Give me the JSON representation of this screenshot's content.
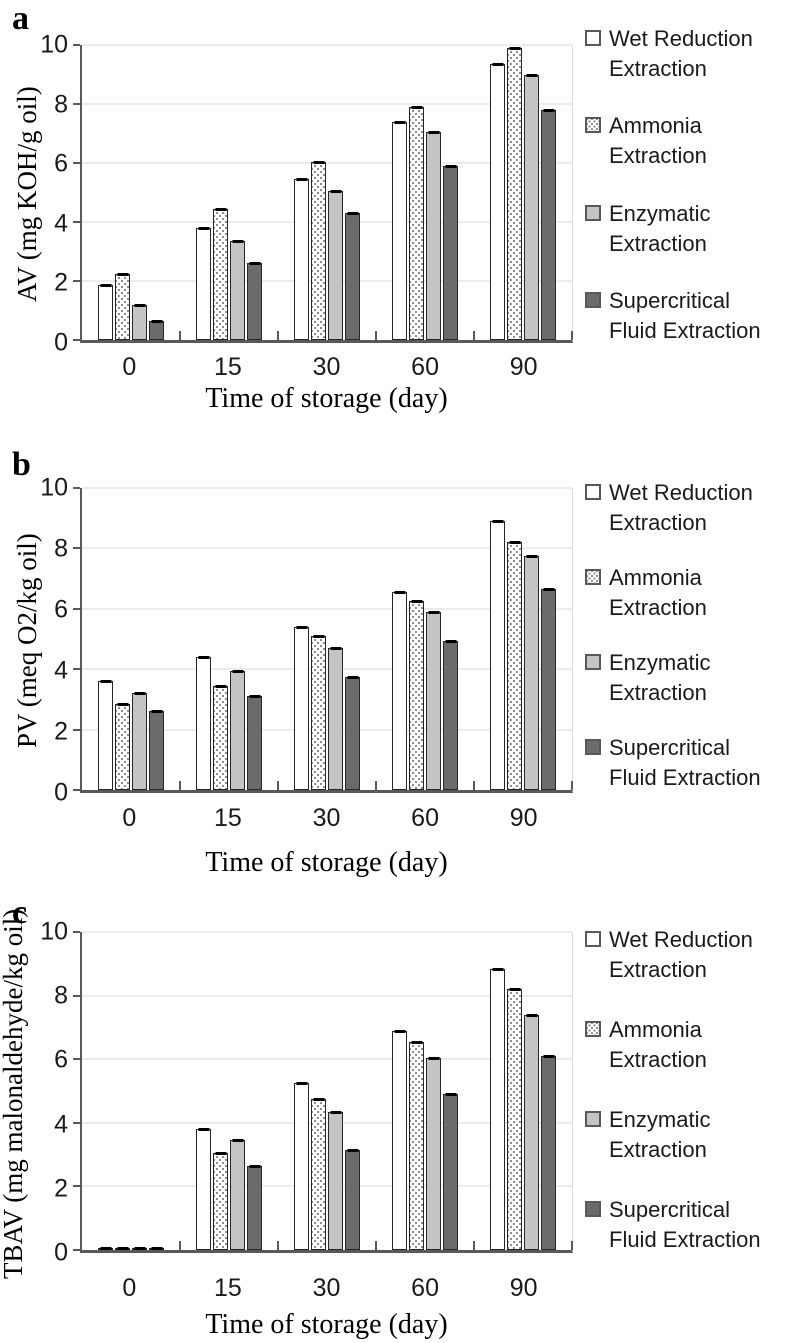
{
  "colors": {
    "background": "#ffffff",
    "axis": "#595959",
    "gridline": "#d9d9d9",
    "bar_border": "#262626",
    "wet_fill": "#ffffff",
    "ammonia_dot": "#8f8f8f",
    "enzymatic_fill": "#c4c4c4",
    "supercritical_fill": "#6b6b6b",
    "error_cap": "#000000",
    "text": "#000000"
  },
  "legend": {
    "position": "right",
    "items": [
      {
        "key": "wet",
        "line1": "Wet Reduction",
        "line2": "Extraction"
      },
      {
        "key": "ammonia",
        "line1": "Ammonia",
        "line2": "Extraction"
      },
      {
        "key": "enzymatic",
        "line1": "Enzymatic",
        "line2": "Extraction"
      },
      {
        "key": "supercritical",
        "line1": "Supercritical",
        "line2": "Fluid Extraction"
      }
    ]
  },
  "chart_data": [
    {
      "type": "bar",
      "panel_label": "a",
      "ylabel": "AV (mg KOH/g oil)",
      "xlabel": "Time of storage (day)",
      "ylim": [
        0,
        10
      ],
      "yticks": [
        0,
        2,
        4,
        6,
        8,
        10
      ],
      "grid": true,
      "has_error_caps": true,
      "legend_position": "right",
      "categories": [
        "0",
        "15",
        "30",
        "60",
        "90"
      ],
      "series": [
        {
          "key": "wet",
          "name": "Wet Reduction Extraction",
          "values": [
            1.85,
            3.8,
            5.45,
            7.4,
            9.35
          ]
        },
        {
          "key": "ammonia",
          "name": "Ammonia Extraction",
          "values": [
            2.25,
            4.45,
            6.05,
            7.9,
            9.9
          ]
        },
        {
          "key": "enzymatic",
          "name": "Enzymatic Extraction",
          "values": [
            1.2,
            3.35,
            5.05,
            7.05,
            9.0
          ]
        },
        {
          "key": "supercritical",
          "name": "Supercritical Fluid Extraction",
          "values": [
            0.65,
            2.6,
            4.3,
            5.9,
            7.8
          ]
        }
      ]
    },
    {
      "type": "bar",
      "panel_label": "b",
      "ylabel": "PV (meq O2/kg oil)",
      "xlabel": "Time of storage (day)",
      "ylim": [
        0,
        10
      ],
      "yticks": [
        0,
        2,
        4,
        6,
        8,
        10
      ],
      "grid": true,
      "has_error_caps": true,
      "legend_position": "right",
      "categories": [
        "0",
        "15",
        "30",
        "60",
        "90"
      ],
      "series": [
        {
          "key": "wet",
          "name": "Wet Reduction Extraction",
          "values": [
            3.6,
            4.4,
            5.4,
            6.55,
            8.9
          ]
        },
        {
          "key": "ammonia",
          "name": "Ammonia Extraction",
          "values": [
            2.85,
            3.45,
            5.1,
            6.25,
            8.2
          ]
        },
        {
          "key": "enzymatic",
          "name": "Enzymatic Extraction",
          "values": [
            3.2,
            3.95,
            4.7,
            5.9,
            7.75
          ]
        },
        {
          "key": "supercritical",
          "name": "Supercritical Fluid Extraction",
          "values": [
            2.6,
            3.1,
            3.75,
            4.95,
            6.65
          ]
        }
      ]
    },
    {
      "type": "bar",
      "panel_label": "c",
      "ylabel": "TBAV (mg malonaldehyde/kg oil)",
      "xlabel": "Time of storage (day)",
      "ylim": [
        0,
        10
      ],
      "yticks": [
        0,
        2,
        4,
        6,
        8,
        10
      ],
      "grid": true,
      "has_error_caps": true,
      "legend_position": "right",
      "categories": [
        "0",
        "15",
        "30",
        "60",
        "90"
      ],
      "series": [
        {
          "key": "wet",
          "name": "Wet Reduction Extraction",
          "values": [
            0.05,
            3.8,
            5.25,
            6.9,
            8.85
          ]
        },
        {
          "key": "ammonia",
          "name": "Ammonia Extraction",
          "values": [
            0.05,
            3.05,
            4.75,
            6.55,
            8.2
          ]
        },
        {
          "key": "enzymatic",
          "name": "Enzymatic Extraction",
          "values": [
            0.05,
            3.45,
            4.35,
            6.05,
            7.4
          ]
        },
        {
          "key": "supercritical",
          "name": "Supercritical Fluid Extraction",
          "values": [
            0.05,
            2.65,
            3.15,
            4.9,
            6.1
          ]
        }
      ]
    }
  ]
}
